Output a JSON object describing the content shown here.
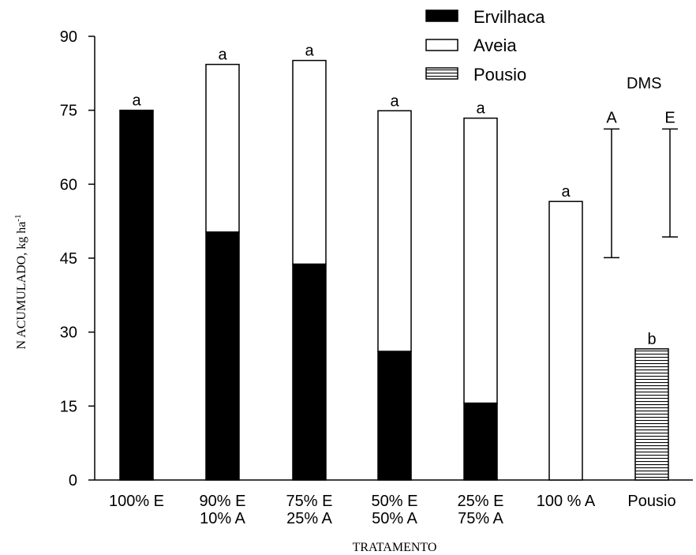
{
  "chart_data": {
    "type": "bar",
    "stacked": true,
    "categories": [
      [
        "100% E"
      ],
      [
        "90% E",
        "10% A"
      ],
      [
        "75% E",
        "25% A"
      ],
      [
        "50% E",
        "50% A"
      ],
      [
        "25% E",
        "75% A"
      ],
      [
        "100 % A"
      ],
      [
        "Pousio"
      ]
    ],
    "series": [
      {
        "name": "Ervilhaca",
        "fill": "solid-black",
        "values": [
          75,
          50.3,
          43.8,
          26.1,
          15.6,
          0,
          0
        ]
      },
      {
        "name": "Aveia",
        "fill": "white",
        "values": [
          0,
          34,
          41.3,
          48.8,
          57.8,
          56.5,
          0
        ]
      },
      {
        "name": "Pousio",
        "fill": "horizontal-hatch",
        "values": [
          0,
          0,
          0,
          0,
          0,
          0,
          26.6
        ]
      }
    ],
    "bar_labels": [
      "a",
      "a",
      "a",
      "a",
      "a",
      "a",
      "b"
    ],
    "totals": [
      75,
      84.3,
      85.1,
      74.9,
      73.4,
      56.5,
      26.6
    ],
    "xlabel": "TRATAMENTO",
    "ylabel_main": "N  ACUMULADO, kg ha",
    "ylabel_sup": "-1",
    "ylim": [
      0,
      90
    ],
    "yticks": [
      0,
      15,
      30,
      45,
      60,
      75,
      90
    ],
    "grid": false,
    "legend_position": "top-right",
    "dms": {
      "title": "DMS",
      "bars": [
        {
          "label": "A",
          "low": 45.1,
          "high": 71.2
        },
        {
          "label": "E",
          "low": 49.3,
          "high": 71.2
        }
      ]
    }
  }
}
